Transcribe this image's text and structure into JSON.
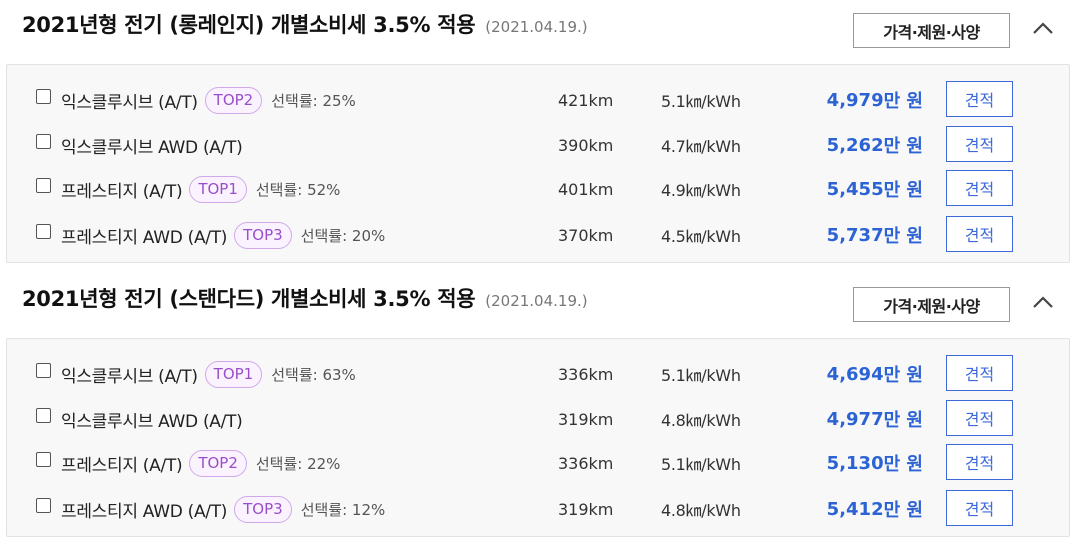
{
  "sections": [
    {
      "title": "2021년형 전기 (롱레인지) 개별소비세 3.5% 적용",
      "date": "(2021.04.19.)",
      "spec_button_label": "가격·제원·사양",
      "collapse_icon": "chevron-up-icon",
      "rows": [
        {
          "name": "익스클루시브 (A/T)",
          "badge": "TOP2",
          "rate": "선택률: 25%",
          "range": "421km",
          "efficiency": "5.1㎞/kWh",
          "price_number": "4,979",
          "price_unit": "만 원",
          "quote_label": "견적"
        },
        {
          "name": "익스클루시브 AWD (A/T)",
          "badge": "",
          "rate": "",
          "range": "390km",
          "efficiency": "4.7㎞/kWh",
          "price_number": "5,262",
          "price_unit": "만 원",
          "quote_label": "견적"
        },
        {
          "name": "프레스티지 (A/T)",
          "badge": "TOP1",
          "rate": "선택률: 52%",
          "range": "401km",
          "efficiency": "4.9㎞/kWh",
          "price_number": "5,455",
          "price_unit": "만 원",
          "quote_label": "견적"
        },
        {
          "name": "프레스티지 AWD (A/T)",
          "badge": "TOP3",
          "rate": "선택률: 20%",
          "range": "370km",
          "efficiency": "4.5㎞/kWh",
          "price_number": "5,737",
          "price_unit": "만 원",
          "quote_label": "견적"
        }
      ]
    },
    {
      "title": "2021년형 전기 (스탠다드) 개별소비세 3.5% 적용",
      "date": "(2021.04.19.)",
      "spec_button_label": "가격·제원·사양",
      "collapse_icon": "chevron-up-icon",
      "rows": [
        {
          "name": "익스클루시브 (A/T)",
          "badge": "TOP1",
          "rate": "선택률: 63%",
          "range": "336km",
          "efficiency": "5.1㎞/kWh",
          "price_number": "4,694",
          "price_unit": "만 원",
          "quote_label": "견적"
        },
        {
          "name": "익스클루시브 AWD (A/T)",
          "badge": "",
          "rate": "",
          "range": "319km",
          "efficiency": "4.8㎞/kWh",
          "price_number": "4,977",
          "price_unit": "만 원",
          "quote_label": "견적"
        },
        {
          "name": "프레스티지 (A/T)",
          "badge": "TOP2",
          "rate": "선택률: 22%",
          "range": "336km",
          "efficiency": "5.1㎞/kWh",
          "price_number": "5,130",
          "price_unit": "만 원",
          "quote_label": "견적"
        },
        {
          "name": "프레스티지 AWD (A/T)",
          "badge": "TOP3",
          "rate": "선택률: 12%",
          "range": "319km",
          "efficiency": "4.8㎞/kWh",
          "price_number": "5,412",
          "price_unit": "만 원",
          "quote_label": "견적"
        }
      ]
    }
  ],
  "colors": {
    "price": "#2c63d4",
    "quote_button": "#3d6ad8",
    "badge_text": "#9a4fc8",
    "badge_border": "#cfa9e8"
  }
}
